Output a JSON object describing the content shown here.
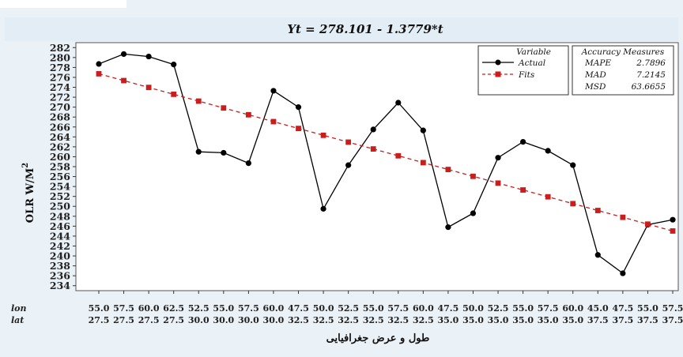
{
  "chart_data": {
    "type": "line",
    "title": "Yt = 278.101 - 1.3779*t",
    "ylabel": "OLR W/M",
    "ylabel_sup": "2",
    "xlabel": "طول و عرض جغرافیایی",
    "ylim": [
      233,
      283
    ],
    "yticks": [
      234,
      236,
      238,
      240,
      242,
      244,
      246,
      248,
      250,
      252,
      254,
      256,
      258,
      260,
      262,
      264,
      266,
      268,
      270,
      272,
      274,
      276,
      278,
      280,
      282
    ],
    "x_row_labels": [
      "lon",
      "lat"
    ],
    "lon": [
      "55.0",
      "57.5",
      "60.0",
      "62.5",
      "52.5",
      "55.0",
      "57.5",
      "60.0",
      "47.5",
      "50.0",
      "52.5",
      "55.0",
      "57.5",
      "60.0",
      "47.5",
      "50.0",
      "52.5",
      "55.0",
      "57.5",
      "60.0",
      "45.0",
      "47.5",
      "55.0",
      "57.5"
    ],
    "lat": [
      "27.5",
      "27.5",
      "27.5",
      "27.5",
      "30.0",
      "30.0",
      "30.0",
      "30.0",
      "32.5",
      "32.5",
      "32.5",
      "32.5",
      "32.5",
      "32.5",
      "35.0",
      "35.0",
      "35.0",
      "35.0",
      "35.0",
      "35.0",
      "37.5",
      "37.5",
      "37.5",
      "37.5"
    ],
    "series": [
      {
        "name": "Actual",
        "color": "#000000",
        "marker": "circle",
        "values": [
          278.7,
          280.7,
          280.2,
          278.6,
          261.0,
          260.8,
          258.7,
          273.3,
          270.0,
          249.5,
          258.3,
          265.5,
          270.9,
          265.3,
          245.8,
          248.6,
          259.8,
          263.0,
          261.2,
          258.3,
          240.2,
          236.5,
          246.3,
          247.3
        ]
      },
      {
        "name": "Fits",
        "color": "#c81e1e",
        "marker": "square",
        "dashed": true,
        "values": [
          276.72,
          275.35,
          273.97,
          272.59,
          271.21,
          269.83,
          268.46,
          267.08,
          265.7,
          264.32,
          262.94,
          261.57,
          260.19,
          258.81,
          257.43,
          256.05,
          254.68,
          253.3,
          251.92,
          250.54,
          249.16,
          247.79,
          246.41,
          245.03
        ]
      }
    ],
    "legend": {
      "title": "Variable",
      "placement": "top-right"
    },
    "accuracy": {
      "title": "Accuracy Measures",
      "rows": [
        {
          "label": "MAPE",
          "value": "2.7896"
        },
        {
          "label": "MAD",
          "value": "7.2145"
        },
        {
          "label": "MSD",
          "value": "63.6655"
        }
      ]
    }
  }
}
